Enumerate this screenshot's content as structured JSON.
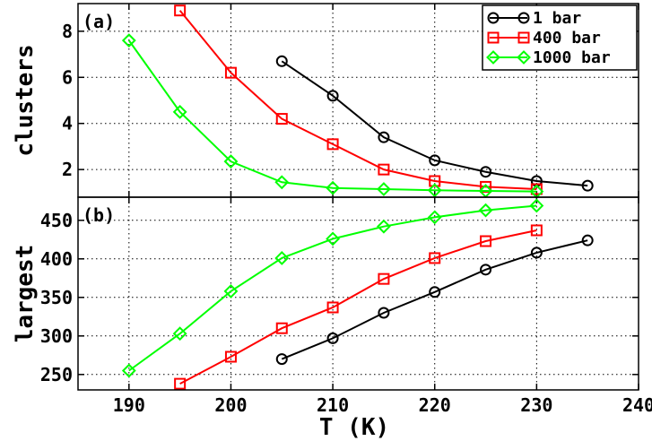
{
  "chart_data": {
    "type": "line",
    "xlabel": "T (K)",
    "xlim": [
      185,
      240
    ],
    "xticks": [
      190,
      200,
      210,
      220,
      230,
      240
    ],
    "grid": true,
    "legend_position": "top-right",
    "panels": [
      {
        "panel_label": "(a)",
        "ylabel": "clusters",
        "ylim": [
          0.8,
          9.2
        ],
        "yticks": [
          2,
          4,
          6,
          8
        ],
        "show_legend": true,
        "series": [
          {
            "name": "1 bar",
            "color": "#000000",
            "marker": "circle",
            "x": [
              205,
              210,
              215,
              220,
              225,
              230,
              235
            ],
            "y": [
              6.7,
              5.2,
              3.4,
              2.4,
              1.9,
              1.5,
              1.3
            ]
          },
          {
            "name": "400 bar",
            "color": "#ff0000",
            "marker": "square",
            "x": [
              195,
              200,
              205,
              210,
              215,
              220,
              225,
              230
            ],
            "y": [
              8.9,
              6.2,
              4.2,
              3.1,
              2.0,
              1.5,
              1.25,
              1.15
            ]
          },
          {
            "name": "1000 bar",
            "color": "#00ff00",
            "marker": "diamond",
            "x": [
              190,
              195,
              200,
              205,
              210,
              215,
              220,
              225,
              230
            ],
            "y": [
              7.6,
              4.5,
              2.35,
              1.45,
              1.2,
              1.15,
              1.1,
              1.07,
              1.05
            ]
          }
        ]
      },
      {
        "panel_label": "(b)",
        "ylabel": "largest",
        "ylim": [
          230,
          480
        ],
        "yticks": [
          250,
          300,
          350,
          400,
          450
        ],
        "show_legend": false,
        "series": [
          {
            "name": "1 bar",
            "color": "#000000",
            "marker": "circle",
            "x": [
              205,
              210,
              215,
              220,
              225,
              230,
              235
            ],
            "y": [
              270,
              297,
              330,
              357,
              386,
              408,
              424
            ]
          },
          {
            "name": "400 bar",
            "color": "#ff0000",
            "marker": "square",
            "x": [
              195,
              200,
              205,
              210,
              215,
              220,
              225,
              230
            ],
            "y": [
              238,
              273,
              310,
              337,
              374,
              401,
              423,
              437
            ]
          },
          {
            "name": "1000 bar",
            "color": "#00ff00",
            "marker": "diamond",
            "x": [
              190,
              195,
              200,
              205,
              210,
              215,
              220,
              225,
              230
            ],
            "y": [
              255,
              303,
              358,
              401,
              426,
              442,
              454,
              463,
              469
            ]
          }
        ]
      }
    ]
  }
}
